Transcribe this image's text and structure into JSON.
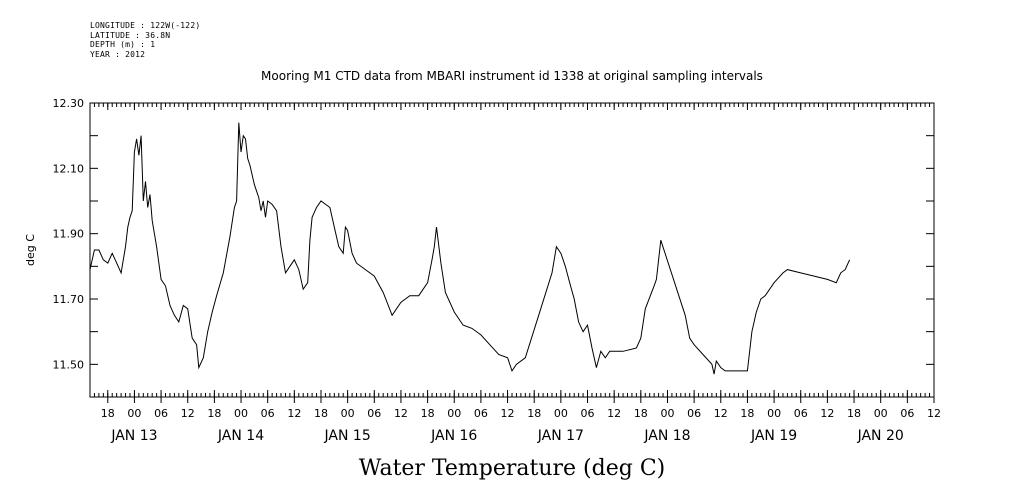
{
  "header": {
    "lines": [
      "LONGITUDE : 122W(-122)",
      "LATITUDE : 36.8N",
      "DEPTH (m) : 1",
      "YEAR : 2012"
    ]
  },
  "chart_data": {
    "type": "line",
    "title": "Mooring M1 CTD data from MBARI instrument id 1338 at original sampling intervals",
    "ylabel": "deg C",
    "xlabel": "Water Temperature (deg C)",
    "xlim": [
      "2012-01-12T14:00",
      "2012-01-20T12:00"
    ],
    "ylim": [
      11.4,
      12.3
    ],
    "yticks": [
      11.5,
      11.7,
      11.9,
      12.1,
      12.3
    ],
    "ytick_labels": [
      "11.50",
      "11.70",
      "11.90",
      "12.10",
      "12.30"
    ],
    "hour_ticks": [
      {
        "t": "2012-01-12T18:00",
        "label": "18"
      },
      {
        "t": "2012-01-13T00:00",
        "label": "00"
      },
      {
        "t": "2012-01-13T06:00",
        "label": "06"
      },
      {
        "t": "2012-01-13T12:00",
        "label": "12"
      },
      {
        "t": "2012-01-13T18:00",
        "label": "18"
      },
      {
        "t": "2012-01-14T00:00",
        "label": "00"
      },
      {
        "t": "2012-01-14T06:00",
        "label": "06"
      },
      {
        "t": "2012-01-14T12:00",
        "label": "12"
      },
      {
        "t": "2012-01-14T18:00",
        "label": "18"
      },
      {
        "t": "2012-01-15T00:00",
        "label": "00"
      },
      {
        "t": "2012-01-15T06:00",
        "label": "06"
      },
      {
        "t": "2012-01-15T12:00",
        "label": "12"
      },
      {
        "t": "2012-01-15T18:00",
        "label": "18"
      },
      {
        "t": "2012-01-16T00:00",
        "label": "00"
      },
      {
        "t": "2012-01-16T06:00",
        "label": "06"
      },
      {
        "t": "2012-01-16T12:00",
        "label": "12"
      },
      {
        "t": "2012-01-16T18:00",
        "label": "18"
      },
      {
        "t": "2012-01-17T00:00",
        "label": "00"
      },
      {
        "t": "2012-01-17T06:00",
        "label": "06"
      },
      {
        "t": "2012-01-17T12:00",
        "label": "12"
      },
      {
        "t": "2012-01-17T18:00",
        "label": "18"
      },
      {
        "t": "2012-01-18T00:00",
        "label": "00"
      },
      {
        "t": "2012-01-18T06:00",
        "label": "06"
      },
      {
        "t": "2012-01-18T12:00",
        "label": "12"
      },
      {
        "t": "2012-01-18T18:00",
        "label": "18"
      },
      {
        "t": "2012-01-19T00:00",
        "label": "00"
      },
      {
        "t": "2012-01-19T06:00",
        "label": "06"
      },
      {
        "t": "2012-01-19T12:00",
        "label": "12"
      },
      {
        "t": "2012-01-19T18:00",
        "label": "18"
      },
      {
        "t": "2012-01-20T00:00",
        "label": "00"
      },
      {
        "t": "2012-01-20T06:00",
        "label": "06"
      },
      {
        "t": "2012-01-20T12:00",
        "label": "12"
      }
    ],
    "day_labels": [
      {
        "t": "2012-01-13T00:00",
        "label": "JAN 13"
      },
      {
        "t": "2012-01-14T00:00",
        "label": "JAN 14"
      },
      {
        "t": "2012-01-15T00:00",
        "label": "JAN 15"
      },
      {
        "t": "2012-01-16T00:00",
        "label": "JAN 16"
      },
      {
        "t": "2012-01-17T00:00",
        "label": "JAN 17"
      },
      {
        "t": "2012-01-18T00:00",
        "label": "JAN 18"
      },
      {
        "t": "2012-01-19T00:00",
        "label": "JAN 19"
      },
      {
        "t": "2012-01-20T00:00",
        "label": "JAN 20"
      }
    ],
    "grid": false,
    "line_color": "#000000",
    "series": [
      {
        "points": [
          [
            "2012-01-12T14:00",
            11.79
          ],
          [
            "2012-01-12T15:00",
            11.85
          ],
          [
            "2012-01-12T16:00",
            11.85
          ],
          [
            "2012-01-12T17:00",
            11.82
          ],
          [
            "2012-01-12T18:00",
            11.81
          ],
          [
            "2012-01-12T19:00",
            11.84
          ],
          [
            "2012-01-12T20:00",
            11.81
          ],
          [
            "2012-01-12T21:00",
            11.78
          ],
          [
            "2012-01-12T22:00",
            11.86
          ],
          [
            "2012-01-12T22:30",
            11.92
          ],
          [
            "2012-01-12T23:00",
            11.95
          ],
          [
            "2012-01-12T23:30",
            11.97
          ],
          [
            "2012-01-13T00:00",
            12.15
          ],
          [
            "2012-01-13T00:30",
            12.19
          ],
          [
            "2012-01-13T01:00",
            12.14
          ],
          [
            "2012-01-13T01:30",
            12.2
          ],
          [
            "2012-01-13T02:00",
            12.0
          ],
          [
            "2012-01-13T02:30",
            12.06
          ],
          [
            "2012-01-13T03:00",
            11.98
          ],
          [
            "2012-01-13T03:30",
            12.02
          ],
          [
            "2012-01-13T04:00",
            11.94
          ],
          [
            "2012-01-13T05:00",
            11.86
          ],
          [
            "2012-01-13T06:00",
            11.76
          ],
          [
            "2012-01-13T07:00",
            11.74
          ],
          [
            "2012-01-13T08:00",
            11.68
          ],
          [
            "2012-01-13T09:00",
            11.65
          ],
          [
            "2012-01-13T10:00",
            11.63
          ],
          [
            "2012-01-13T11:00",
            11.68
          ],
          [
            "2012-01-13T12:00",
            11.67
          ],
          [
            "2012-01-13T13:00",
            11.58
          ],
          [
            "2012-01-13T14:00",
            11.56
          ],
          [
            "2012-01-13T14:30",
            11.49
          ],
          [
            "2012-01-13T15:30",
            11.52
          ],
          [
            "2012-01-13T16:30",
            11.6
          ],
          [
            "2012-01-13T17:30",
            11.66
          ],
          [
            "2012-01-13T18:30",
            11.71
          ],
          [
            "2012-01-13T20:00",
            11.78
          ],
          [
            "2012-01-13T21:30",
            11.89
          ],
          [
            "2012-01-13T22:30",
            11.98
          ],
          [
            "2012-01-13T23:00",
            12.0
          ],
          [
            "2012-01-13T23:30",
            12.24
          ],
          [
            "2012-01-14T00:00",
            12.15
          ],
          [
            "2012-01-14T00:30",
            12.2
          ],
          [
            "2012-01-14T01:00",
            12.19
          ],
          [
            "2012-01-14T01:30",
            12.13
          ],
          [
            "2012-01-14T02:00",
            12.11
          ],
          [
            "2012-01-14T03:00",
            12.05
          ],
          [
            "2012-01-14T04:00",
            12.01
          ],
          [
            "2012-01-14T04:30",
            11.97
          ],
          [
            "2012-01-14T05:00",
            12.0
          ],
          [
            "2012-01-14T05:30",
            11.95
          ],
          [
            "2012-01-14T06:00",
            12.0
          ],
          [
            "2012-01-14T07:00",
            11.99
          ],
          [
            "2012-01-14T08:00",
            11.97
          ],
          [
            "2012-01-14T09:00",
            11.86
          ],
          [
            "2012-01-14T10:00",
            11.78
          ],
          [
            "2012-01-14T11:00",
            11.8
          ],
          [
            "2012-01-14T12:00",
            11.82
          ],
          [
            "2012-01-14T13:00",
            11.79
          ],
          [
            "2012-01-14T14:00",
            11.73
          ],
          [
            "2012-01-14T15:00",
            11.75
          ],
          [
            "2012-01-14T15:30",
            11.88
          ],
          [
            "2012-01-14T16:00",
            11.95
          ],
          [
            "2012-01-14T17:00",
            11.98
          ],
          [
            "2012-01-14T18:00",
            12.0
          ],
          [
            "2012-01-14T20:00",
            11.98
          ],
          [
            "2012-01-14T21:00",
            11.92
          ],
          [
            "2012-01-14T22:00",
            11.86
          ],
          [
            "2012-01-14T23:00",
            11.84
          ],
          [
            "2012-01-14T23:30",
            11.92
          ],
          [
            "2012-01-15T00:00",
            11.91
          ],
          [
            "2012-01-15T01:00",
            11.84
          ],
          [
            "2012-01-15T02:00",
            11.81
          ],
          [
            "2012-01-15T04:00",
            11.79
          ],
          [
            "2012-01-15T06:00",
            11.77
          ],
          [
            "2012-01-15T08:00",
            11.72
          ],
          [
            "2012-01-15T10:00",
            11.65
          ],
          [
            "2012-01-15T12:00",
            11.69
          ],
          [
            "2012-01-15T14:00",
            11.71
          ],
          [
            "2012-01-15T16:00",
            11.71
          ],
          [
            "2012-01-15T18:00",
            11.75
          ],
          [
            "2012-01-15T19:00",
            11.82
          ],
          [
            "2012-01-15T19:30",
            11.86
          ],
          [
            "2012-01-15T20:00",
            11.92
          ],
          [
            "2012-01-15T21:00",
            11.81
          ],
          [
            "2012-01-15T22:00",
            11.72
          ],
          [
            "2012-01-16T00:00",
            11.66
          ],
          [
            "2012-01-16T02:00",
            11.62
          ],
          [
            "2012-01-16T04:00",
            11.61
          ],
          [
            "2012-01-16T06:00",
            11.59
          ],
          [
            "2012-01-16T08:00",
            11.56
          ],
          [
            "2012-01-16T10:00",
            11.53
          ],
          [
            "2012-01-16T12:00",
            11.52
          ],
          [
            "2012-01-16T13:00",
            11.48
          ],
          [
            "2012-01-16T14:00",
            11.5
          ],
          [
            "2012-01-16T16:00",
            11.52
          ],
          [
            "2012-01-16T19:00",
            11.65
          ],
          [
            "2012-01-16T22:00",
            11.78
          ],
          [
            "2012-01-16T23:00",
            11.86
          ],
          [
            "2012-01-17T00:00",
            11.84
          ],
          [
            "2012-01-17T01:00",
            11.8
          ],
          [
            "2012-01-17T02:00",
            11.75
          ],
          [
            "2012-01-17T03:00",
            11.7
          ],
          [
            "2012-01-17T04:00",
            11.63
          ],
          [
            "2012-01-17T05:00",
            11.6
          ],
          [
            "2012-01-17T06:00",
            11.62
          ],
          [
            "2012-01-17T07:00",
            11.55
          ],
          [
            "2012-01-17T08:00",
            11.49
          ],
          [
            "2012-01-17T09:00",
            11.54
          ],
          [
            "2012-01-17T10:00",
            11.52
          ],
          [
            "2012-01-17T11:00",
            11.54
          ],
          [
            "2012-01-17T14:00",
            11.54
          ],
          [
            "2012-01-17T17:00",
            11.55
          ],
          [
            "2012-01-17T18:00",
            11.58
          ],
          [
            "2012-01-17T19:00",
            11.67
          ],
          [
            "2012-01-17T21:00",
            11.74
          ],
          [
            "2012-01-17T21:30",
            11.76
          ],
          [
            "2012-01-17T22:00",
            11.82
          ],
          [
            "2012-01-17T22:30",
            11.88
          ],
          [
            "2012-01-18T04:00",
            11.65
          ],
          [
            "2012-01-18T05:00",
            11.58
          ],
          [
            "2012-01-18T06:00",
            11.56
          ],
          [
            "2012-01-18T08:00",
            11.53
          ],
          [
            "2012-01-18T10:00",
            11.5
          ],
          [
            "2012-01-18T10:30",
            11.47
          ],
          [
            "2012-01-18T11:00",
            11.51
          ],
          [
            "2012-01-18T12:00",
            11.49
          ],
          [
            "2012-01-18T13:00",
            11.48
          ],
          [
            "2012-01-18T16:00",
            11.48
          ],
          [
            "2012-01-18T18:00",
            11.48
          ],
          [
            "2012-01-18T19:00",
            11.6
          ],
          [
            "2012-01-18T20:00",
            11.66
          ],
          [
            "2012-01-18T21:00",
            11.7
          ],
          [
            "2012-01-18T22:00",
            11.71
          ],
          [
            "2012-01-19T00:00",
            11.75
          ],
          [
            "2012-01-19T02:00",
            11.78
          ],
          [
            "2012-01-19T03:00",
            11.79
          ],
          [
            "2012-01-19T06:00",
            11.78
          ],
          [
            "2012-01-19T09:00",
            11.77
          ],
          [
            "2012-01-19T12:00",
            11.76
          ],
          [
            "2012-01-19T14:00",
            11.75
          ],
          [
            "2012-01-19T15:00",
            11.78
          ],
          [
            "2012-01-19T16:00",
            11.79
          ],
          [
            "2012-01-19T17:00",
            11.82
          ]
        ]
      }
    ]
  }
}
